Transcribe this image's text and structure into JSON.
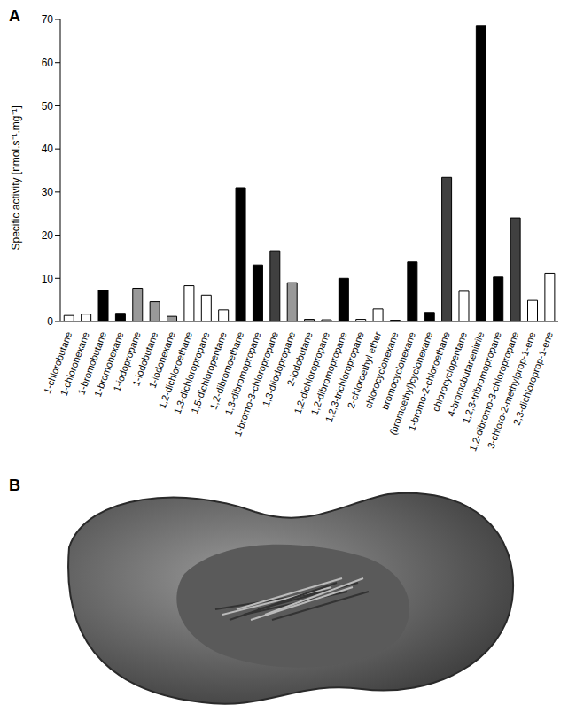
{
  "chart_data": {
    "type": "bar",
    "title": "A",
    "y_label": "Specific activity [nmol.s⁻¹.mg⁻¹]",
    "categories": [
      "1-chlorobutane",
      "1-chlorohexane",
      "1-bromobutane",
      "1-bromohexane",
      "1-iodopropane",
      "1-iodobutane",
      "1-iodohexane",
      "1,2-dichloroethane",
      "1,3-dichloropropane",
      "1,5-dichloropentane",
      "1,2-dibromoethane",
      "1,3-dibromopropane",
      "1-bromo-3-chloropropane",
      "1,3-diiodopropane",
      "2-iodobutane",
      "1,2-dichloropropane",
      "1,2-dibromopropane",
      "1,2,3-trichloropropane",
      "2-chloroethyl ether",
      "chlorocyclohexane",
      "bromocyclohexane",
      "(bromoethyl)cyclohexane",
      "1-bromo-2-chloroethane",
      "chlorocyclopentane",
      "4-bromobutanenitrile",
      "1,2,3-tribromopropane",
      "1,2-dibromo-3-chloropropane",
      "3-chloro-2-methylprop-1-ene",
      "2,3-dichloroprop-1-ene"
    ],
    "values": [
      1.4,
      1.7,
      7.2,
      1.9,
      7.7,
      4.6,
      1.2,
      8.3,
      6.1,
      2.7,
      31.0,
      13.1,
      16.4,
      9.0,
      0.5,
      0.4,
      10.0,
      0.5,
      2.9,
      0.3,
      13.8,
      2.1,
      33.4,
      7.0,
      68.6,
      10.3,
      24.0,
      4.9,
      11.2
    ],
    "colors": [
      "#ffffff",
      "#ffffff",
      "#000000",
      "#000000",
      "#999999",
      "#999999",
      "#999999",
      "#ffffff",
      "#ffffff",
      "#ffffff",
      "#000000",
      "#000000",
      "#404040",
      "#999999",
      "#999999",
      "#ffffff",
      "#000000",
      "#ffffff",
      "#ffffff",
      "#ffffff",
      "#000000",
      "#000000",
      "#404040",
      "#ffffff",
      "#000000",
      "#000000",
      "#404040",
      "#ffffff",
      "#ffffff"
    ],
    "ylim": [
      0,
      70
    ],
    "yticks": [
      0,
      10,
      20,
      30,
      40,
      50,
      60,
      70
    ],
    "grid": false
  },
  "panel_b": {
    "label": "B"
  }
}
